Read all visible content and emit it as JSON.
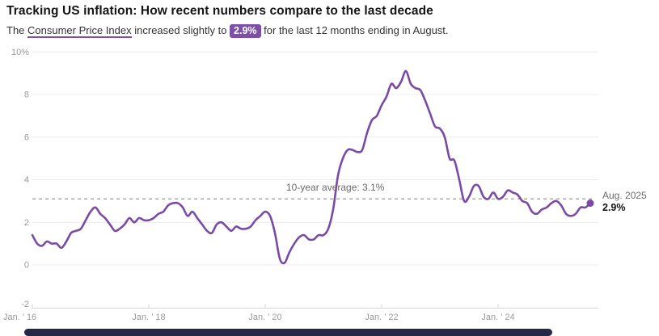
{
  "header": {
    "title": "Tracking US inflation: How recent numbers compare to the last decade",
    "subtitle": {
      "prefix": "The ",
      "link_text": "Consumer Price Index",
      "middle": " increased slightly to ",
      "badge": "2.9%",
      "suffix": " for the last 12 months ending in August."
    }
  },
  "chart_data": {
    "type": "line",
    "series_name": "Consumer Price Index, year-over-year % change",
    "x_start": "Jan 2016",
    "x_end": "Aug 2025",
    "x_frequency": "monthly",
    "values": [
      1.4,
      1.0,
      0.9,
      1.1,
      1.0,
      1.0,
      0.8,
      1.1,
      1.5,
      1.6,
      1.7,
      2.1,
      2.5,
      2.7,
      2.4,
      2.2,
      1.9,
      1.6,
      1.7,
      1.9,
      2.2,
      2.0,
      2.2,
      2.1,
      2.1,
      2.2,
      2.4,
      2.5,
      2.8,
      2.9,
      2.9,
      2.7,
      2.3,
      2.5,
      2.2,
      1.9,
      1.6,
      1.5,
      1.9,
      2.0,
      1.8,
      1.6,
      1.8,
      1.7,
      1.7,
      1.8,
      2.1,
      2.3,
      2.5,
      2.3,
      1.5,
      0.3,
      0.1,
      0.6,
      1.0,
      1.3,
      1.4,
      1.2,
      1.2,
      1.4,
      1.4,
      1.7,
      2.6,
      4.2,
      5.0,
      5.4,
      5.4,
      5.3,
      5.4,
      6.2,
      6.8,
      7.0,
      7.5,
      7.9,
      8.5,
      8.3,
      8.6,
      9.1,
      8.5,
      8.3,
      8.2,
      7.7,
      7.1,
      6.5,
      6.4,
      6.0,
      5.0,
      4.9,
      4.0,
      3.0,
      3.2,
      3.7,
      3.7,
      3.2,
      3.1,
      3.4,
      3.1,
      3.2,
      3.5,
      3.4,
      3.3,
      3.0,
      2.9,
      2.5,
      2.4,
      2.6,
      2.7,
      2.9,
      3.0,
      2.8,
      2.4,
      2.3,
      2.4,
      2.7,
      2.7,
      2.9
    ],
    "ylim": [
      -2,
      10
    ],
    "y_ticks": [
      {
        "label": "10%",
        "value": 10
      },
      {
        "label": "8",
        "value": 8
      },
      {
        "label": "6",
        "value": 6
      },
      {
        "label": "4",
        "value": 4
      },
      {
        "label": "2",
        "value": 2
      },
      {
        "label": "0",
        "value": 0
      },
      {
        "label": "-2",
        "value": -2
      }
    ],
    "x_ticks": [
      {
        "label": "Jan. ’ 16",
        "month_index": 0
      },
      {
        "label": "Jan. ’ 18",
        "month_index": 24
      },
      {
        "label": "Jan. ’ 20",
        "month_index": 48
      },
      {
        "label": "Jan. ’ 22",
        "month_index": 72
      },
      {
        "label": "Jan. ’ 24",
        "month_index": 96
      }
    ],
    "grid": "horizontal",
    "legend": "none",
    "average_line": {
      "value": 3.1,
      "label": "10-year average: 3.1%"
    },
    "end_annotation": {
      "date_label": "Aug. 2025",
      "value_label": "2.9%",
      "value": 2.9
    },
    "line_color": "#7a4aa5"
  },
  "colors": {
    "accent_purple": "#7d4fa5",
    "grid": "#ececec",
    "axis_line": "#d6d6d6",
    "axis_text": "#9a9a9a",
    "annotation_text": "#6b6b6b",
    "dashed_line": "#9b9b9b",
    "scrollbar_thumb": "#232849"
  }
}
